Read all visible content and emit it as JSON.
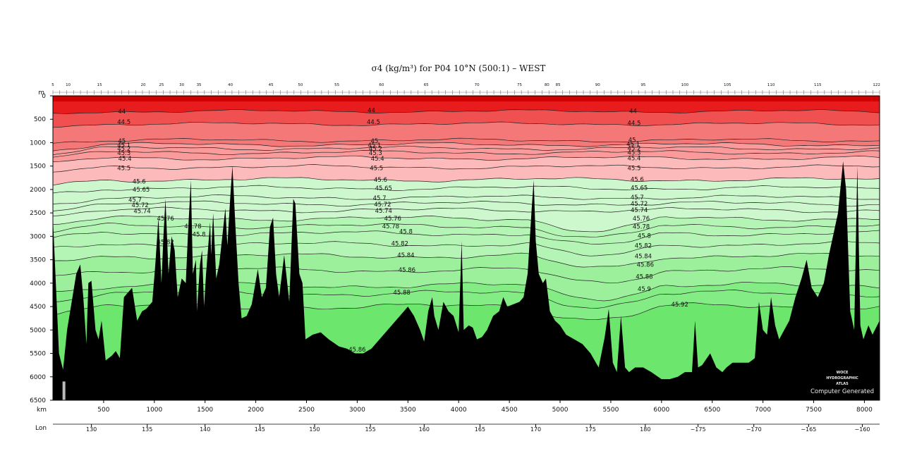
{
  "chart_data": {
    "type": "section",
    "title": "σ4 (kg/m³) for P04 10°N (500:1) – WEST",
    "depth_unit": "m",
    "distance_unit": "km",
    "lon_label": "Lon",
    "ylim": [
      0,
      6500
    ],
    "xlim": [
      0,
      8150
    ],
    "y_ticks": [
      "0",
      "500",
      "1000",
      "1500",
      "2000",
      "2500",
      "3000",
      "3500",
      "4000",
      "4500",
      "5000",
      "5500",
      "6000",
      "6500"
    ],
    "x_ticks": [
      "500",
      "1000",
      "1500",
      "2000",
      "2500",
      "3000",
      "3500",
      "4000",
      "4500",
      "5000",
      "5500",
      "6000",
      "6500",
      "7000",
      "7500",
      "8000"
    ],
    "lon_ticks": [
      {
        "km": 380,
        "label": "130"
      },
      {
        "km": 930,
        "label": "135"
      },
      {
        "km": 1500,
        "label": "140"
      },
      {
        "km": 2040,
        "label": "145"
      },
      {
        "km": 2580,
        "label": "150"
      },
      {
        "km": 3130,
        "label": "155"
      },
      {
        "km": 3660,
        "label": "160"
      },
      {
        "km": 4210,
        "label": "165"
      },
      {
        "km": 4760,
        "label": "170"
      },
      {
        "km": 5300,
        "label": "175"
      },
      {
        "km": 5840,
        "label": "180"
      },
      {
        "km": 6360,
        "label": "−175"
      },
      {
        "km": 6910,
        "label": "−170"
      },
      {
        "km": 7450,
        "label": "−165"
      },
      {
        "km": 7980,
        "label": "−160"
      }
    ],
    "station_ticks": [
      {
        "km": 0,
        "label": "5"
      },
      {
        "km": 150,
        "label": "10"
      },
      {
        "km": 460,
        "label": "15"
      },
      {
        "km": 890,
        "label": "20"
      },
      {
        "km": 1070,
        "label": "25"
      },
      {
        "km": 1270,
        "label": "30"
      },
      {
        "km": 1440,
        "label": "35"
      },
      {
        "km": 1750,
        "label": "40"
      },
      {
        "km": 2150,
        "label": "45"
      },
      {
        "km": 2440,
        "label": "50"
      },
      {
        "km": 2800,
        "label": "55"
      },
      {
        "km": 3240,
        "label": "60"
      },
      {
        "km": 3680,
        "label": "65"
      },
      {
        "km": 4180,
        "label": "70"
      },
      {
        "km": 4600,
        "label": "75"
      },
      {
        "km": 4870,
        "label": "80"
      },
      {
        "km": 4980,
        "label": "85"
      },
      {
        "km": 5370,
        "label": "90"
      },
      {
        "km": 5820,
        "label": "95"
      },
      {
        "km": 6230,
        "label": "100"
      },
      {
        "km": 6650,
        "label": "105"
      },
      {
        "km": 7080,
        "label": "110"
      },
      {
        "km": 7540,
        "label": "115"
      },
      {
        "km": 8120,
        "label": "122"
      }
    ],
    "contour_levels": [
      44,
      44.5,
      45,
      45.1,
      45.2,
      45.3,
      45.4,
      45.5,
      45.6,
      45.65,
      45.7,
      45.72,
      45.74,
      45.76,
      45.78,
      45.8,
      45.82,
      45.84,
      45.86,
      45.88,
      45.9,
      45.92
    ],
    "contour_depths": [
      {
        "level": 44,
        "depth": 330
      },
      {
        "level": 44.5,
        "depth": 600
      },
      {
        "level": 45,
        "depth": 950
      },
      {
        "level": 45.1,
        "depth": 1040
      },
      {
        "level": 45.2,
        "depth": 1120
      },
      {
        "level": 45.3,
        "depth": 1210
      },
      {
        "level": 45.4,
        "depth": 1330
      },
      {
        "level": 45.5,
        "depth": 1520
      },
      {
        "level": 45.6,
        "depth": 1790
      },
      {
        "level": 45.65,
        "depth": 1970
      },
      {
        "level": 45.7,
        "depth": 2170
      },
      {
        "level": 45.72,
        "depth": 2300
      },
      {
        "level": 45.74,
        "depth": 2440
      },
      {
        "level": 45.76,
        "depth": 2620
      },
      {
        "level": 45.78,
        "depth": 2780
      },
      {
        "level": 45.8,
        "depth": 2940
      },
      {
        "level": 45.82,
        "depth": 3170
      },
      {
        "level": 45.84,
        "depth": 3420
      },
      {
        "level": 45.86,
        "depth": 3720
      },
      {
        "level": 45.88,
        "depth": 4050
      },
      {
        "level": 45.9,
        "depth": 4220
      },
      {
        "level": 45.92,
        "depth": 4500
      }
    ],
    "contour_labels": [
      {
        "text": "44",
        "km": 680,
        "depth": 330
      },
      {
        "text": "44.5",
        "km": 700,
        "depth": 560
      },
      {
        "text": "45",
        "km": 680,
        "depth": 960
      },
      {
        "text": "45.1",
        "km": 700,
        "depth": 1050
      },
      {
        "text": "45.2",
        "km": 700,
        "depth": 1130
      },
      {
        "text": "45.3",
        "km": 700,
        "depth": 1220
      },
      {
        "text": "45.4",
        "km": 710,
        "depth": 1340
      },
      {
        "text": "45.5",
        "km": 700,
        "depth": 1540
      },
      {
        "text": "45.6",
        "km": 850,
        "depth": 1830
      },
      {
        "text": "45.65",
        "km": 870,
        "depth": 2000
      },
      {
        "text": "45.7",
        "km": 810,
        "depth": 2220
      },
      {
        "text": "45.72",
        "km": 860,
        "depth": 2330
      },
      {
        "text": "45.74",
        "km": 880,
        "depth": 2460
      },
      {
        "text": "45.76",
        "km": 1110,
        "depth": 2620
      },
      {
        "text": "45.78",
        "km": 1380,
        "depth": 2780
      },
      {
        "text": "45.8",
        "km": 1440,
        "depth": 2960
      },
      {
        "text": "45.82",
        "km": 1110,
        "depth": 3120
      },
      {
        "text": "44",
        "km": 3140,
        "depth": 310
      },
      {
        "text": "44.5",
        "km": 3160,
        "depth": 560
      },
      {
        "text": "45",
        "km": 3170,
        "depth": 960
      },
      {
        "text": "45.1",
        "km": 3170,
        "depth": 1050
      },
      {
        "text": "45.2",
        "km": 3180,
        "depth": 1130
      },
      {
        "text": "45.3",
        "km": 3180,
        "depth": 1220
      },
      {
        "text": "45.4",
        "km": 3200,
        "depth": 1340
      },
      {
        "text": "45.5",
        "km": 3190,
        "depth": 1540
      },
      {
        "text": "45.6",
        "km": 3230,
        "depth": 1790
      },
      {
        "text": "45.65",
        "km": 3260,
        "depth": 1970
      },
      {
        "text": "45.7",
        "km": 3220,
        "depth": 2180
      },
      {
        "text": "45.72",
        "km": 3250,
        "depth": 2320
      },
      {
        "text": "45.74",
        "km": 3260,
        "depth": 2450
      },
      {
        "text": "45.76",
        "km": 3350,
        "depth": 2620
      },
      {
        "text": "45.78",
        "km": 3330,
        "depth": 2780
      },
      {
        "text": "45.8",
        "km": 3480,
        "depth": 2900
      },
      {
        "text": "45.82",
        "km": 3420,
        "depth": 3150
      },
      {
        "text": "45.84",
        "km": 3480,
        "depth": 3400
      },
      {
        "text": "45.86",
        "km": 3490,
        "depth": 3720
      },
      {
        "text": "45.88",
        "km": 3440,
        "depth": 4200
      },
      {
        "text": "45.86",
        "km": 3000,
        "depth": 5420
      },
      {
        "text": "44",
        "km": 5720,
        "depth": 320
      },
      {
        "text": "44.5",
        "km": 5730,
        "depth": 580
      },
      {
        "text": "45",
        "km": 5710,
        "depth": 940
      },
      {
        "text": "45.1",
        "km": 5720,
        "depth": 1030
      },
      {
        "text": "45.2",
        "km": 5730,
        "depth": 1120
      },
      {
        "text": "45.3",
        "km": 5730,
        "depth": 1210
      },
      {
        "text": "45.4",
        "km": 5730,
        "depth": 1330
      },
      {
        "text": "45.5",
        "km": 5730,
        "depth": 1540
      },
      {
        "text": "45.6",
        "km": 5760,
        "depth": 1780
      },
      {
        "text": "45.65",
        "km": 5780,
        "depth": 1960
      },
      {
        "text": "45.7",
        "km": 5760,
        "depth": 2170
      },
      {
        "text": "45.72",
        "km": 5780,
        "depth": 2300
      },
      {
        "text": "45.74",
        "km": 5780,
        "depth": 2440
      },
      {
        "text": "45.76",
        "km": 5800,
        "depth": 2620
      },
      {
        "text": "45.78",
        "km": 5800,
        "depth": 2790
      },
      {
        "text": "45.8",
        "km": 5830,
        "depth": 2990
      },
      {
        "text": "45.82",
        "km": 5820,
        "depth": 3200
      },
      {
        "text": "45.84",
        "km": 5820,
        "depth": 3420
      },
      {
        "text": "45.86",
        "km": 5840,
        "depth": 3600
      },
      {
        "text": "45.88",
        "km": 5830,
        "depth": 3860
      },
      {
        "text": "45.9",
        "km": 5830,
        "depth": 4120
      },
      {
        "text": "45.92",
        "km": 6180,
        "depth": 4450
      }
    ],
    "bathymetry": [
      [
        0,
        2600
      ],
      [
        60,
        5500
      ],
      [
        100,
        5850
      ],
      [
        140,
        5000
      ],
      [
        200,
        4200
      ],
      [
        230,
        3800
      ],
      [
        270,
        3600
      ],
      [
        300,
        4300
      ],
      [
        330,
        5300
      ],
      [
        350,
        4000
      ],
      [
        380,
        3950
      ],
      [
        420,
        5000
      ],
      [
        450,
        5200
      ],
      [
        480,
        4800
      ],
      [
        520,
        5650
      ],
      [
        580,
        5550
      ],
      [
        620,
        5450
      ],
      [
        660,
        5600
      ],
      [
        700,
        4300
      ],
      [
        780,
        4100
      ],
      [
        830,
        4800
      ],
      [
        880,
        4600
      ],
      [
        920,
        4550
      ],
      [
        980,
        4400
      ],
      [
        1010,
        3600
      ],
      [
        1040,
        2600
      ],
      [
        1070,
        4000
      ],
      [
        1090,
        3000
      ],
      [
        1110,
        2200
      ],
      [
        1140,
        3800
      ],
      [
        1170,
        3000
      ],
      [
        1200,
        3300
      ],
      [
        1230,
        4300
      ],
      [
        1270,
        3900
      ],
      [
        1310,
        4000
      ],
      [
        1330,
        3000
      ],
      [
        1360,
        1800
      ],
      [
        1380,
        3800
      ],
      [
        1410,
        3500
      ],
      [
        1420,
        4600
      ],
      [
        1450,
        3600
      ],
      [
        1470,
        3300
      ],
      [
        1490,
        4500
      ],
      [
        1510,
        3800
      ],
      [
        1550,
        2700
      ],
      [
        1560,
        3400
      ],
      [
        1580,
        2500
      ],
      [
        1610,
        3900
      ],
      [
        1640,
        3600
      ],
      [
        1680,
        2800
      ],
      [
        1700,
        2400
      ],
      [
        1720,
        3200
      ],
      [
        1750,
        2100
      ],
      [
        1770,
        1500
      ],
      [
        1800,
        2800
      ],
      [
        1830,
        4000
      ],
      [
        1860,
        4750
      ],
      [
        1910,
        4700
      ],
      [
        1960,
        4450
      ],
      [
        2020,
        3700
      ],
      [
        2060,
        4300
      ],
      [
        2100,
        4100
      ],
      [
        2140,
        2800
      ],
      [
        2170,
        2600
      ],
      [
        2200,
        3800
      ],
      [
        2230,
        4300
      ],
      [
        2280,
        3400
      ],
      [
        2330,
        4400
      ],
      [
        2370,
        2200
      ],
      [
        2390,
        2300
      ],
      [
        2430,
        3800
      ],
      [
        2460,
        4000
      ],
      [
        2490,
        5200
      ],
      [
        2560,
        5100
      ],
      [
        2640,
        5050
      ],
      [
        2720,
        5200
      ],
      [
        2820,
        5350
      ],
      [
        2900,
        5400
      ],
      [
        2980,
        5500
      ],
      [
        3060,
        5500
      ],
      [
        3140,
        5400
      ],
      [
        3220,
        5200
      ],
      [
        3300,
        5000
      ],
      [
        3380,
        4800
      ],
      [
        3460,
        4600
      ],
      [
        3500,
        4500
      ],
      [
        3560,
        4700
      ],
      [
        3620,
        5000
      ],
      [
        3660,
        5250
      ],
      [
        3700,
        4600
      ],
      [
        3740,
        4300
      ],
      [
        3760,
        4700
      ],
      [
        3800,
        5000
      ],
      [
        3850,
        4400
      ],
      [
        3900,
        4600
      ],
      [
        3950,
        4700
      ],
      [
        4000,
        5050
      ],
      [
        4030,
        3100
      ],
      [
        4050,
        5000
      ],
      [
        4100,
        4900
      ],
      [
        4140,
        4950
      ],
      [
        4180,
        5200
      ],
      [
        4230,
        5150
      ],
      [
        4280,
        5000
      ],
      [
        4340,
        4700
      ],
      [
        4400,
        4600
      ],
      [
        4440,
        4300
      ],
      [
        4480,
        4500
      ],
      [
        4540,
        4450
      ],
      [
        4600,
        4400
      ],
      [
        4640,
        4300
      ],
      [
        4680,
        3800
      ],
      [
        4720,
        2400
      ],
      [
        4740,
        1800
      ],
      [
        4760,
        3100
      ],
      [
        4790,
        3800
      ],
      [
        4830,
        4000
      ],
      [
        4860,
        3900
      ],
      [
        4900,
        4600
      ],
      [
        4950,
        4800
      ],
      [
        5000,
        4900
      ],
      [
        5060,
        5100
      ],
      [
        5140,
        5200
      ],
      [
        5220,
        5300
      ],
      [
        5300,
        5500
      ],
      [
        5380,
        5800
      ],
      [
        5440,
        5150
      ],
      [
        5480,
        4550
      ],
      [
        5520,
        5700
      ],
      [
        5560,
        5900
      ],
      [
        5600,
        4700
      ],
      [
        5640,
        5800
      ],
      [
        5680,
        5900
      ],
      [
        5740,
        5800
      ],
      [
        5820,
        5800
      ],
      [
        5900,
        5900
      ],
      [
        6000,
        6050
      ],
      [
        6080,
        6050
      ],
      [
        6160,
        6000
      ],
      [
        6230,
        5900
      ],
      [
        6300,
        5900
      ],
      [
        6330,
        4800
      ],
      [
        6360,
        5800
      ],
      [
        6400,
        5750
      ],
      [
        6480,
        5500
      ],
      [
        6540,
        5800
      ],
      [
        6600,
        5900
      ],
      [
        6640,
        5800
      ],
      [
        6700,
        5700
      ],
      [
        6750,
        5700
      ],
      [
        6800,
        5700
      ],
      [
        6860,
        5700
      ],
      [
        6920,
        5600
      ],
      [
        6960,
        4400
      ],
      [
        7000,
        5000
      ],
      [
        7040,
        5100
      ],
      [
        7080,
        4300
      ],
      [
        7120,
        4900
      ],
      [
        7160,
        5200
      ],
      [
        7210,
        5000
      ],
      [
        7260,
        4800
      ],
      [
        7320,
        4300
      ],
      [
        7380,
        3900
      ],
      [
        7430,
        3500
      ],
      [
        7480,
        4100
      ],
      [
        7540,
        4300
      ],
      [
        7600,
        4000
      ],
      [
        7650,
        3400
      ],
      [
        7700,
        2900
      ],
      [
        7740,
        2500
      ],
      [
        7790,
        1400
      ],
      [
        7820,
        2000
      ],
      [
        7860,
        4600
      ],
      [
        7900,
        5000
      ],
      [
        7930,
        1500
      ],
      [
        7960,
        4900
      ],
      [
        7990,
        5200
      ],
      [
        8040,
        4900
      ],
      [
        8080,
        5100
      ],
      [
        8150,
        4800
      ]
    ]
  },
  "watermark": [
    "WOCE",
    "HYDROGRAPHIC",
    "ATLAS"
  ],
  "credit": "Computer Generated",
  "colors": {
    "red": [
      "#e81c1c",
      "#f05050",
      "#f57878",
      "#fa9a9a",
      "#fcbaba"
    ],
    "green": [
      "#cdf8cd",
      "#b4f4b4",
      "#9cf09c",
      "#84ec84",
      "#6ce66c"
    ],
    "bathymetry": "#000000"
  }
}
